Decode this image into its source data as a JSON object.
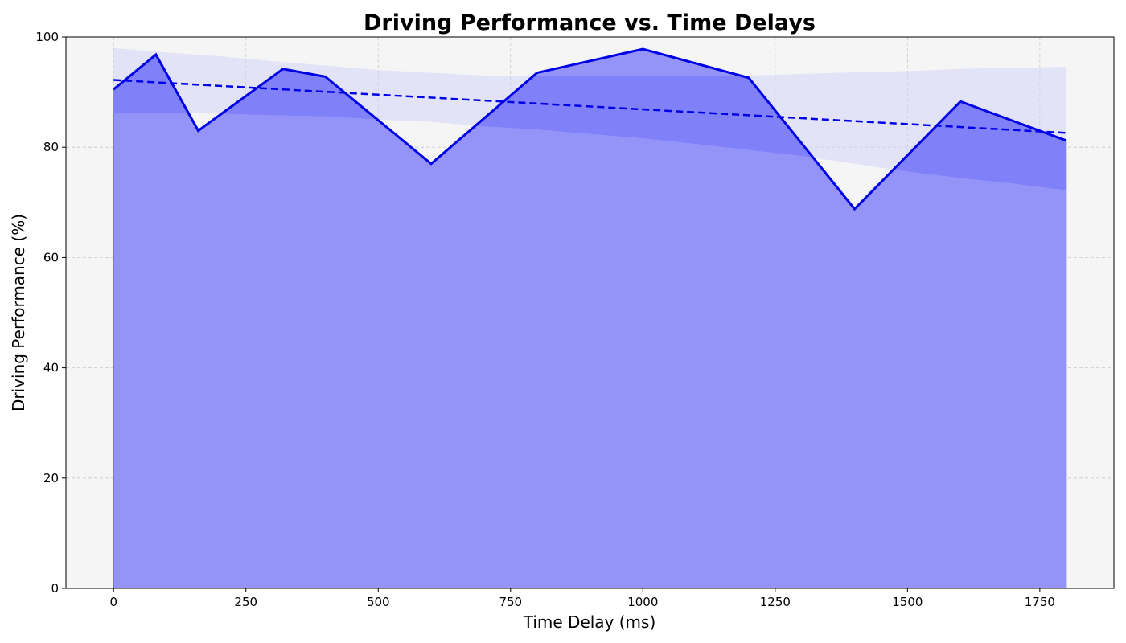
{
  "chart_data": {
    "type": "area",
    "title": "Driving Performance vs. Time Delays",
    "xlabel": "Time Delay (ms)",
    "ylabel": "Driving Performance (%)",
    "xlim": [
      -90,
      1890
    ],
    "ylim": [
      0,
      100
    ],
    "x_ticks": [
      0,
      250,
      500,
      750,
      1000,
      1250,
      1500,
      1750
    ],
    "y_ticks": [
      0,
      20,
      40,
      60,
      80,
      100
    ],
    "grid": true,
    "legend": "none",
    "colors": {
      "plot_background": "#f5f5f5",
      "line": "#0000e6",
      "area_fill": "#9494f8",
      "band_fill": "#d4d4f8",
      "band_overlap": "#8080f8",
      "grid": "#c8c8c8"
    },
    "series": [
      {
        "role": "observed",
        "style": "solid line with area fill to zero",
        "x": [
          0,
          80,
          160,
          320,
          400,
          600,
          800,
          1000,
          1200,
          1400,
          1600,
          1800
        ],
        "values": [
          90.5,
          96.8,
          83.0,
          94.2,
          92.8,
          77.0,
          93.5,
          97.8,
          92.6,
          68.8,
          88.3,
          81.2
        ]
      },
      {
        "role": "trend",
        "style": "dashed line",
        "x": [
          0,
          1800
        ],
        "values": [
          92.2,
          82.6
        ]
      },
      {
        "role": "confidence band",
        "style": "shaded band",
        "x": [
          0,
          100,
          200,
          300,
          400,
          500,
          600,
          700,
          800,
          900,
          1000,
          1100,
          1200,
          1300,
          1400,
          1500,
          1600,
          1700,
          1800
        ],
        "upper": [
          98.0,
          97.2,
          96.5,
          95.6,
          94.8,
          94.0,
          93.5,
          93.0,
          93.0,
          92.9,
          92.9,
          93.0,
          93.0,
          93.3,
          93.6,
          93.8,
          94.2,
          94.4,
          94.6
        ],
        "lower": [
          86.2,
          86.2,
          86.1,
          85.8,
          85.6,
          85.0,
          84.6,
          83.8,
          83.2,
          82.4,
          81.6,
          80.6,
          79.5,
          78.4,
          77.0,
          75.6,
          74.4,
          73.4,
          72.2
        ]
      }
    ]
  }
}
